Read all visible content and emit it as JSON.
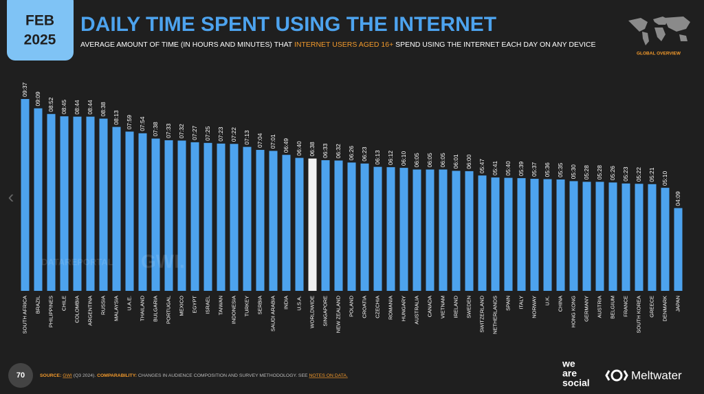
{
  "header": {
    "badge_month": "FEB",
    "badge_year": "2025",
    "title": "DAILY TIME SPENT USING THE INTERNET",
    "subtitle_part1": "AVERAGE AMOUNT OF TIME (IN HOURS AND MINUTES) THAT",
    "subtitle_highlight": "INTERNET USERS AGED 16+",
    "subtitle_part2": "SPEND USING THE INTERNET EACH DAY ON ANY DEVICE",
    "section": "GLOBAL OVERVIEW"
  },
  "watermark": {
    "left": "DATAREPORTAL",
    "right": "GWI."
  },
  "footer": {
    "page": "70",
    "source_label": "SOURCE:",
    "source": "GWI",
    "source_period": "(Q3 2024).",
    "comparability_label": "COMPARABILITY:",
    "comparability": "CHANGES IN AUDIENCE COMPOSITION AND SURVEY METHODOLOGY. SEE",
    "notes_link": "NOTES ON DATA.",
    "logo1_line1": "we",
    "logo1_line2": "are",
    "logo1_line3": "social",
    "logo2": "Meltwater"
  },
  "chart_data": {
    "type": "bar",
    "categories": [
      "SOUTH AFRICA",
      "BRAZIL",
      "PHILIPPINES",
      "CHILE",
      "COLOMBIA",
      "ARGENTINA",
      "RUSSIA",
      "MALAYSIA",
      "U.A.E.",
      "THAILAND",
      "BULGARIA",
      "PORTUGAL",
      "MEXICO",
      "EGYPT",
      "ISRAEL",
      "TAIWAN",
      "INDONESIA",
      "TURKEY",
      "SERBIA",
      "SAUDI ARABIA",
      "INDIA",
      "U.S.A.",
      "WORLDWIDE",
      "SINGAPORE",
      "NEW ZEALAND",
      "POLAND",
      "CROATIA",
      "CZECHIA",
      "ROMANIA",
      "HUNGARY",
      "AUSTRALIA",
      "CANADA",
      "VIETNAM",
      "IRELAND",
      "SWEDEN",
      "SWITZERLAND",
      "NETHERLANDS",
      "SPAIN",
      "ITALY",
      "NORWAY",
      "U.K.",
      "CHINA",
      "HONG KONG",
      "GERMANY",
      "AUSTRIA",
      "BELGIUM",
      "FRANCE",
      "SOUTH KOREA",
      "GREECE",
      "DENMARK",
      "JAPAN"
    ],
    "values": [
      577,
      549,
      532,
      525,
      524,
      524,
      518,
      493,
      479,
      474,
      458,
      453,
      452,
      447,
      445,
      443,
      442,
      433,
      424,
      421,
      409,
      400,
      398,
      393,
      392,
      386,
      383,
      373,
      372,
      370,
      365,
      365,
      365,
      361,
      360,
      347,
      341,
      340,
      339,
      337,
      336,
      335,
      330,
      328,
      328,
      326,
      323,
      322,
      321,
      310,
      249
    ],
    "value_labels": [
      "09:37",
      "09:09",
      "08:52",
      "08:45",
      "08:44",
      "08:44",
      "08:38",
      "08:13",
      "07:59",
      "07:54",
      "07:38",
      "07:33",
      "07:32",
      "07:27",
      "07:25",
      "07:23",
      "07:22",
      "07:13",
      "07:04",
      "07:01",
      "06:49",
      "06:40",
      "06:38",
      "06:33",
      "06:32",
      "06:26",
      "06:23",
      "06:13",
      "06:12",
      "06:10",
      "06:05",
      "06:05",
      "06:05",
      "06:01",
      "06:00",
      "05:47",
      "05:41",
      "05:40",
      "05:39",
      "05:37",
      "05:36",
      "05:35",
      "05:30",
      "05:28",
      "05:28",
      "05:26",
      "05:23",
      "05:22",
      "05:21",
      "05:10",
      "04:09"
    ],
    "colors": [
      "#4da3ee",
      "#4da3ee",
      "#4da3ee",
      "#4da3ee",
      "#4da3ee",
      "#4da3ee",
      "#4da3ee",
      "#4da3ee",
      "#4da3ee",
      "#4da3ee",
      "#4da3ee",
      "#4da3ee",
      "#4da3ee",
      "#4da3ee",
      "#4da3ee",
      "#4da3ee",
      "#4da3ee",
      "#4da3ee",
      "#4da3ee",
      "#4da3ee",
      "#4da3ee",
      "#4da3ee",
      "#f0f0f0",
      "#4da3ee",
      "#4da3ee",
      "#4da3ee",
      "#4da3ee",
      "#4da3ee",
      "#4da3ee",
      "#4da3ee",
      "#4da3ee",
      "#4da3ee",
      "#4da3ee",
      "#4da3ee",
      "#4da3ee",
      "#4da3ee",
      "#4da3ee",
      "#4da3ee",
      "#4da3ee",
      "#4da3ee",
      "#4da3ee",
      "#4da3ee",
      "#4da3ee",
      "#4da3ee",
      "#4da3ee",
      "#4da3ee",
      "#4da3ee",
      "#4da3ee",
      "#4da3ee",
      "#4da3ee",
      "#4da3ee"
    ]
  }
}
